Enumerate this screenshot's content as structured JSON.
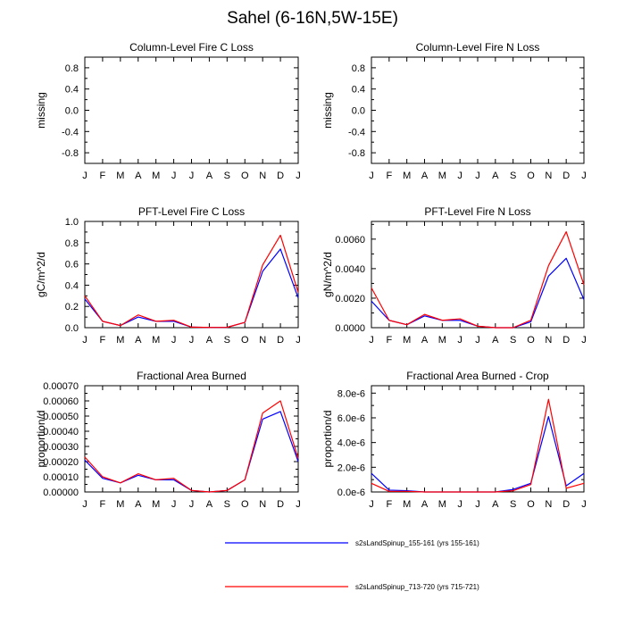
{
  "figure": {
    "title": "Sahel (6-16N,5W-15E)"
  },
  "legend": [
    {
      "label": "s2sLandSpinup_155-161 (yrs 155-161)",
      "color": "#0000ff"
    },
    {
      "label": "s2sLandSpinup_713-720 (yrs 715-721)",
      "color": "#ff0000"
    }
  ],
  "chart_data": [
    {
      "id": "col-c",
      "type": "line",
      "title": "Column-Level Fire C Loss",
      "ylabel": "missing",
      "categories": [
        "J",
        "F",
        "M",
        "A",
        "M",
        "J",
        "J",
        "A",
        "S",
        "O",
        "N",
        "D",
        "J"
      ],
      "ylim": [
        -1.0,
        1.0
      ],
      "yticks": [
        -0.8,
        -0.4,
        0.0,
        0.4,
        0.8
      ],
      "ytick_labels": [
        "-0.8",
        "-0.4",
        "0.0",
        "0.4",
        "0.8"
      ],
      "series": []
    },
    {
      "id": "col-n",
      "type": "line",
      "title": "Column-Level Fire N Loss",
      "ylabel": "missing",
      "categories": [
        "J",
        "F",
        "M",
        "A",
        "M",
        "J",
        "J",
        "A",
        "S",
        "O",
        "N",
        "D",
        "J"
      ],
      "ylim": [
        -1.0,
        1.0
      ],
      "yticks": [
        -0.8,
        -0.4,
        0.0,
        0.4,
        0.8
      ],
      "ytick_labels": [
        "-0.8",
        "-0.4",
        "0.0",
        "0.4",
        "0.8"
      ],
      "series": []
    },
    {
      "id": "pft-c",
      "type": "line",
      "title": "PFT-Level Fire C Loss",
      "ylabel": "gC/m^2/d",
      "categories": [
        "J",
        "F",
        "M",
        "A",
        "M",
        "J",
        "J",
        "A",
        "S",
        "O",
        "N",
        "D",
        "J"
      ],
      "ylim": [
        0.0,
        1.0
      ],
      "yticks": [
        0.0,
        0.2,
        0.4,
        0.6,
        0.8,
        1.0
      ],
      "ytick_labels": [
        "0.0",
        "0.2",
        "0.4",
        "0.6",
        "0.8",
        "1.0"
      ],
      "series": [
        {
          "name": "s2sLandSpinup_155-161 (yrs 155-161)",
          "color": "#0000ff",
          "values": [
            0.27,
            0.06,
            0.02,
            0.1,
            0.06,
            0.06,
            0.005,
            0.002,
            0.003,
            0.05,
            0.53,
            0.74,
            0.28
          ]
        },
        {
          "name": "s2sLandSpinup_713-720 (yrs 715-721)",
          "color": "#ff0000",
          "values": [
            0.3,
            0.06,
            0.02,
            0.12,
            0.06,
            0.07,
            0.005,
            0.002,
            0.003,
            0.05,
            0.59,
            0.87,
            0.33
          ]
        }
      ]
    },
    {
      "id": "pft-n",
      "type": "line",
      "title": "PFT-Level Fire N Loss",
      "ylabel": "gN/m^2/d",
      "categories": [
        "J",
        "F",
        "M",
        "A",
        "M",
        "J",
        "J",
        "A",
        "S",
        "O",
        "N",
        "D",
        "J"
      ],
      "ylim": [
        0.0,
        0.0072
      ],
      "yticks": [
        0.0,
        0.002,
        0.004,
        0.006
      ],
      "ytick_labels": [
        "0.0000",
        "0.0020",
        "0.0040",
        "0.0060"
      ],
      "series": [
        {
          "name": "s2sLandSpinup_155-161 (yrs 155-161)",
          "color": "#0000ff",
          "values": [
            0.0018,
            0.0005,
            0.0002,
            0.0008,
            0.0005,
            0.0005,
            0.0001,
            0.0,
            0.0,
            0.0004,
            0.0035,
            0.0047,
            0.0019
          ]
        },
        {
          "name": "s2sLandSpinup_713-720 (yrs 715-721)",
          "color": "#ff0000",
          "values": [
            0.0027,
            0.0005,
            0.0002,
            0.0009,
            0.0005,
            0.0006,
            0.0001,
            0.0,
            0.0,
            0.0005,
            0.0042,
            0.0065,
            0.0029
          ]
        }
      ]
    },
    {
      "id": "frac",
      "type": "line",
      "title": "Fractional Area Burned",
      "ylabel": "proportion/d",
      "categories": [
        "J",
        "F",
        "M",
        "A",
        "M",
        "J",
        "J",
        "A",
        "S",
        "O",
        "N",
        "D",
        "J"
      ],
      "ylim": [
        0.0,
        0.0007
      ],
      "yticks": [
        0.0,
        0.0001,
        0.0002,
        0.0003,
        0.0004,
        0.0005,
        0.0006,
        0.0007
      ],
      "ytick_labels": [
        "0.00000",
        "0.00010",
        "0.00020",
        "0.00030",
        "0.00040",
        "0.00050",
        "0.00060",
        "0.00070"
      ],
      "series": [
        {
          "name": "s2sLandSpinup_155-161 (yrs 155-161)",
          "color": "#0000ff",
          "values": [
            0.00021,
            9e-05,
            6e-05,
            0.00011,
            8e-05,
            8e-05,
            1e-05,
            0.0,
            1e-05,
            8e-05,
            0.00048,
            0.00053,
            0.0002
          ]
        },
        {
          "name": "s2sLandSpinup_713-720 (yrs 715-721)",
          "color": "#ff0000",
          "values": [
            0.00023,
            0.0001,
            6e-05,
            0.00012,
            8e-05,
            9e-05,
            1e-05,
            0.0,
            1e-05,
            8e-05,
            0.00052,
            0.0006,
            0.00022
          ]
        }
      ]
    },
    {
      "id": "frac-crop",
      "type": "line",
      "title": "Fractional Area Burned - Crop",
      "ylabel": "proportion/d",
      "categories": [
        "J",
        "F",
        "M",
        "A",
        "M",
        "J",
        "J",
        "A",
        "S",
        "O",
        "N",
        "D",
        "J"
      ],
      "ylim": [
        0.0,
        8.6e-06
      ],
      "yticks": [
        0.0,
        2e-06,
        4e-06,
        6e-06,
        8e-06
      ],
      "ytick_labels": [
        "0.0e-6",
        "2.0e-6",
        "4.0e-6",
        "6.0e-6",
        "8.0e-6"
      ],
      "series": [
        {
          "name": "s2sLandSpinup_155-161 (yrs 155-161)",
          "color": "#0000ff",
          "values": [
            1.5e-06,
            1.5e-07,
            1e-07,
            0.0,
            0.0,
            0.0,
            0.0,
            0.0,
            2e-07,
            7e-07,
            6.1e-06,
            5e-07,
            1.5e-06
          ]
        },
        {
          "name": "s2sLandSpinup_713-720 (yrs 715-721)",
          "color": "#ff0000",
          "values": [
            7e-07,
            5e-08,
            5e-08,
            0.0,
            0.0,
            0.0,
            0.0,
            0.0,
            1e-07,
            6e-07,
            7.5e-06,
            3e-07,
            7e-07
          ]
        }
      ]
    }
  ]
}
